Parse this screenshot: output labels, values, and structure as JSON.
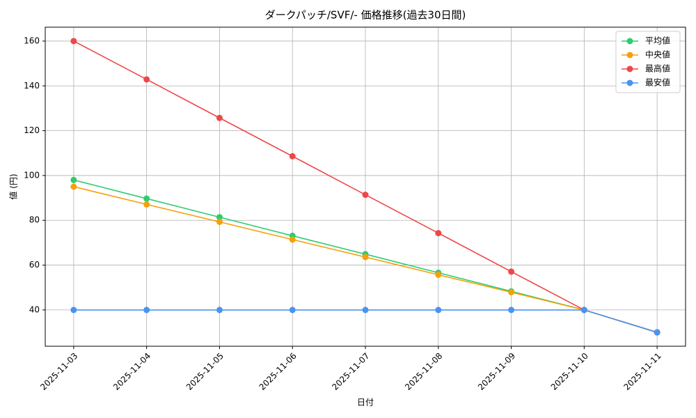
{
  "chart_data": {
    "type": "line",
    "title": "ダークパッチ/SVF/- 価格推移(過去30日間)",
    "x_label": "日付",
    "y_label": "値 (円)",
    "categories": [
      "2025-11-03",
      "2025-11-04",
      "2025-11-05",
      "2025-11-06",
      "2025-11-07",
      "2025-11-08",
      "2025-11-09",
      "2025-11-10",
      "2025-11-11"
    ],
    "series": [
      {
        "name": "平均値",
        "color": "#2ecc71",
        "values": [
          98,
          89.7,
          81.4,
          73.1,
          64.9,
          56.6,
          48.3,
          40,
          30
        ]
      },
      {
        "name": "中央値",
        "color": "#f5a00a",
        "values": [
          95,
          87.1,
          79.3,
          71.4,
          63.6,
          55.7,
          47.9,
          40,
          30
        ]
      },
      {
        "name": "最高値",
        "color": "#ef4747",
        "values": [
          160,
          142.9,
          125.7,
          108.6,
          91.4,
          74.3,
          57.1,
          40,
          30
        ]
      },
      {
        "name": "最安値",
        "color": "#4a94f0",
        "values": [
          40,
          40,
          40,
          40,
          40,
          40,
          40,
          40,
          30
        ]
      }
    ],
    "ylim": [
      23.8,
      166.2
    ],
    "yticks": [
      40,
      60,
      80,
      100,
      120,
      140,
      160
    ],
    "grid": true,
    "legend": "upper-right"
  }
}
